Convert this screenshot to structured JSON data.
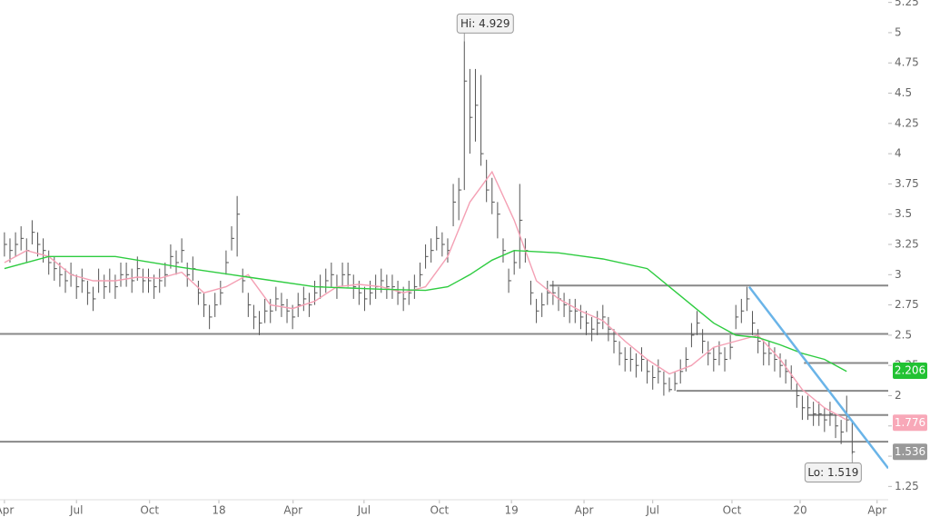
{
  "chart_data": {
    "type": "ohlc",
    "high": [
      3.35,
      3.3,
      3.35,
      3.4,
      3.3,
      3.45,
      3.35,
      3.3,
      3.2,
      3.15,
      3.1,
      3.05,
      3.1,
      3.0,
      3.05,
      2.95,
      2.9,
      3.05,
      3.0,
      3.05,
      3.0,
      3.1,
      3.1,
      3.05,
      3.15,
      3.05,
      3.05,
      3.0,
      3.05,
      3.1,
      3.25,
      3.2,
      3.3,
      3.1,
      3.15,
      2.95,
      2.85,
      2.75,
      2.85,
      2.95,
      3.2,
      3.4,
      3.65,
      3.05,
      2.85,
      2.75,
      2.7,
      2.8,
      2.8,
      2.9,
      2.85,
      2.8,
      2.75,
      2.85,
      2.9,
      2.85,
      2.95,
      3.0,
      3.05,
      3.1,
      3.0,
      3.1,
      3.1,
      3.0,
      2.95,
      2.9,
      2.95,
      3.0,
      3.05,
      3.0,
      3.0,
      2.95,
      2.9,
      2.95,
      3.0,
      3.1,
      3.25,
      3.3,
      3.4,
      3.35,
      3.3,
      3.75,
      3.8,
      4.929,
      4.7,
      4.7,
      4.65,
      3.95,
      3.8,
      3.6,
      3.3,
      3.05,
      3.2,
      3.75,
      3.3,
      2.95,
      2.8,
      2.85,
      2.95,
      2.95,
      2.9,
      2.85,
      2.8,
      2.8,
      2.75,
      2.7,
      2.65,
      2.7,
      2.75,
      2.65,
      2.55,
      2.45,
      2.4,
      2.4,
      2.35,
      2.4,
      2.3,
      2.25,
      2.3,
      2.2,
      2.15,
      2.2,
      2.3,
      2.4,
      2.6,
      2.7,
      2.55,
      2.45,
      2.4,
      2.45,
      2.4,
      2.5,
      2.75,
      2.8,
      2.9,
      2.7,
      2.55,
      2.45,
      2.45,
      2.4,
      2.35,
      2.3,
      2.25,
      2.1,
      2.0,
      2.0,
      1.95,
      1.95,
      1.9,
      1.95,
      1.85,
      1.8,
      2.0,
      1.8
    ],
    "low": [
      3.15,
      3.1,
      3.15,
      3.2,
      3.1,
      3.25,
      3.15,
      3.1,
      3.0,
      2.95,
      2.9,
      2.85,
      2.9,
      2.8,
      2.85,
      2.75,
      2.7,
      2.85,
      2.8,
      2.85,
      2.8,
      2.9,
      2.9,
      2.85,
      2.95,
      2.85,
      2.85,
      2.8,
      2.85,
      2.9,
      3.05,
      3.0,
      3.1,
      2.9,
      2.95,
      2.75,
      2.65,
      2.55,
      2.65,
      2.75,
      3.0,
      3.2,
      3.15,
      2.85,
      2.65,
      2.55,
      2.5,
      2.6,
      2.6,
      2.7,
      2.65,
      2.6,
      2.55,
      2.65,
      2.7,
      2.65,
      2.75,
      2.8,
      2.85,
      2.9,
      2.8,
      2.9,
      2.9,
      2.8,
      2.75,
      2.7,
      2.75,
      2.8,
      2.85,
      2.8,
      2.8,
      2.75,
      2.7,
      2.75,
      2.8,
      2.9,
      3.05,
      3.1,
      3.2,
      3.15,
      3.1,
      3.4,
      3.45,
      3.7,
      4.0,
      4.1,
      3.9,
      3.6,
      3.5,
      3.3,
      3.1,
      2.85,
      3.0,
      3.05,
      3.1,
      2.75,
      2.6,
      2.65,
      2.75,
      2.75,
      2.7,
      2.65,
      2.6,
      2.6,
      2.55,
      2.5,
      2.45,
      2.5,
      2.55,
      2.45,
      2.35,
      2.25,
      2.2,
      2.2,
      2.15,
      2.2,
      2.1,
      2.05,
      2.1,
      2.0,
      2.03,
      2.04,
      2.1,
      2.2,
      2.4,
      2.5,
      2.35,
      2.25,
      2.2,
      2.25,
      2.2,
      2.3,
      2.55,
      2.6,
      2.7,
      2.5,
      2.35,
      2.25,
      2.25,
      2.2,
      2.15,
      2.1,
      2.05,
      1.9,
      1.8,
      1.8,
      1.75,
      1.75,
      1.7,
      1.75,
      1.65,
      1.6,
      1.7,
      1.519
    ],
    "close": [
      3.25,
      3.2,
      3.25,
      3.3,
      3.2,
      3.35,
      3.25,
      3.2,
      3.1,
      3.05,
      3.0,
      2.95,
      3.0,
      2.9,
      2.95,
      2.85,
      2.8,
      2.95,
      2.9,
      2.95,
      2.9,
      3.0,
      3.0,
      2.95,
      3.05,
      2.95,
      2.95,
      2.9,
      2.95,
      3.0,
      3.15,
      3.1,
      3.2,
      3.0,
      3.05,
      2.85,
      2.75,
      2.65,
      2.75,
      2.85,
      3.1,
      3.3,
      3.5,
      2.95,
      2.75,
      2.65,
      2.6,
      2.7,
      2.7,
      2.8,
      2.75,
      2.7,
      2.65,
      2.75,
      2.8,
      2.75,
      2.85,
      2.9,
      2.95,
      3.0,
      2.9,
      3.0,
      3.0,
      2.9,
      2.85,
      2.8,
      2.85,
      2.9,
      2.95,
      2.9,
      2.9,
      2.85,
      2.8,
      2.85,
      2.9,
      3.0,
      3.15,
      3.2,
      3.3,
      3.25,
      3.2,
      3.6,
      3.7,
      4.6,
      4.3,
      4.4,
      4.0,
      3.7,
      3.6,
      3.5,
      3.2,
      2.95,
      3.1,
      3.45,
      3.2,
      2.85,
      2.7,
      2.75,
      2.85,
      2.85,
      2.8,
      2.75,
      2.7,
      2.7,
      2.65,
      2.6,
      2.55,
      2.6,
      2.65,
      2.55,
      2.45,
      2.35,
      2.3,
      2.3,
      2.25,
      2.3,
      2.2,
      2.15,
      2.2,
      2.1,
      2.05,
      2.1,
      2.2,
      2.3,
      2.5,
      2.6,
      2.45,
      2.35,
      2.3,
      2.35,
      2.3,
      2.4,
      2.65,
      2.7,
      2.8,
      2.6,
      2.45,
      2.35,
      2.35,
      2.3,
      2.25,
      2.2,
      2.15,
      2.0,
      1.9,
      1.9,
      1.85,
      1.85,
      1.8,
      1.85,
      1.75,
      1.7,
      1.8,
      1.536
    ],
    "bar_color": "#555555",
    "xlim": [
      -0.8,
      159.5
    ],
    "xticks": [
      {
        "value": 0,
        "label": "Apr"
      },
      {
        "value": 13,
        "label": "Jul"
      },
      {
        "value": 26.2,
        "label": "Oct"
      },
      {
        "value": 38.7,
        "label": "18"
      },
      {
        "value": 52.1,
        "label": "Apr"
      },
      {
        "value": 64.9,
        "label": "Jul"
      },
      {
        "value": 78.5,
        "label": "Oct"
      },
      {
        "value": 91.5,
        "label": "19"
      },
      {
        "value": 104.6,
        "label": "Apr"
      },
      {
        "value": 117,
        "label": "Jul"
      },
      {
        "value": 131.3,
        "label": "Oct"
      },
      {
        "value": 143.6,
        "label": "20"
      },
      {
        "value": 157.5,
        "label": "Apr"
      }
    ],
    "ylim": [
      1.14,
      5.27
    ],
    "yticks": [
      1.25,
      1.5,
      1.75,
      2,
      2.25,
      2.5,
      2.75,
      3,
      3.25,
      3.5,
      3.75,
      4,
      4.25,
      4.5,
      4.75,
      5,
      5.25
    ],
    "lines": [
      {
        "color": "#f4a0b4",
        "label_color": "#f8a8b8",
        "x": [
          0,
          4,
          8,
          12,
          16,
          20,
          24,
          28,
          32,
          36,
          40,
          44,
          48,
          52,
          56,
          60,
          64,
          68,
          72,
          76,
          80,
          84,
          88,
          92,
          96,
          100,
          104,
          108,
          112,
          116,
          120,
          124,
          128,
          132,
          136,
          140,
          144,
          148,
          152
        ],
        "values": [
          3.1,
          3.2,
          3.15,
          3.0,
          2.95,
          2.95,
          2.98,
          2.97,
          3.02,
          2.85,
          2.9,
          3.0,
          2.75,
          2.72,
          2.78,
          2.9,
          2.92,
          2.9,
          2.85,
          2.9,
          3.15,
          3.6,
          3.85,
          3.45,
          2.95,
          2.8,
          2.7,
          2.62,
          2.45,
          2.3,
          2.18,
          2.25,
          2.4,
          2.45,
          2.5,
          2.3,
          2.05,
          1.9,
          1.8
        ],
        "last_value": 1.776
      },
      {
        "color": "#2ecc40",
        "label_color": "#22c233",
        "x": [
          0,
          8,
          20,
          32,
          44,
          56,
          68,
          76,
          80,
          84,
          88,
          92,
          100,
          108,
          116,
          120,
          124,
          128,
          132,
          136,
          140,
          144,
          148,
          152
        ],
        "values": [
          3.05,
          3.15,
          3.15,
          3.06,
          2.98,
          2.9,
          2.88,
          2.87,
          2.9,
          3.0,
          3.12,
          3.2,
          3.18,
          3.13,
          3.05,
          2.9,
          2.75,
          2.6,
          2.5,
          2.48,
          2.42,
          2.35,
          2.3,
          2.2
        ],
        "last_value": 2.206
      }
    ],
    "levels": [
      {
        "value": 2.51,
        "from": -0.8
      },
      {
        "value": 1.62,
        "from": -0.8
      },
      {
        "value": 2.91,
        "from": 98.4
      },
      {
        "value": 2.04,
        "from": 121.3
      },
      {
        "value": 2.27,
        "from": 144.3
      },
      {
        "value": 1.84,
        "from": 145.1
      }
    ],
    "level_color": "#888888",
    "trendline": {
      "x": [
        134.4,
        159.5
      ],
      "values": [
        2.9,
        1.4
      ],
      "color": "#6ab4e8"
    },
    "annotations": [
      {
        "label": "Hi: 4.929",
        "value": 4.929,
        "index": 83
      },
      {
        "label": "Lo: 1.519",
        "value": 1.519,
        "index": 153
      }
    ]
  }
}
